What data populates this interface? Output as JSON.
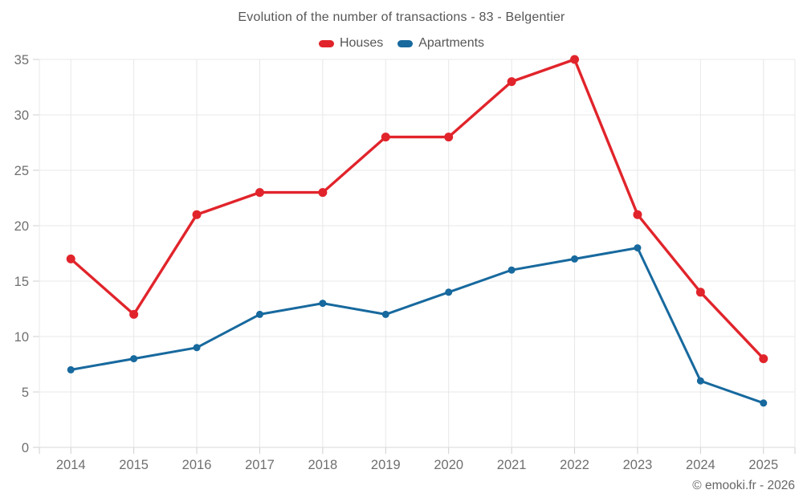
{
  "footer": {
    "copyright": "© emooki.fr - 2026"
  },
  "colors": {
    "houses": "#e1242b",
    "apartments": "#17699e",
    "grid": "#e8e8e8",
    "axis": "#cfcfcf",
    "tick_text": "#6f6f6f",
    "title_text": "#565656"
  },
  "chart_data": {
    "type": "line",
    "title": "Evolution of the number of transactions - 83 - Belgentier",
    "categories": [
      "2014",
      "2015",
      "2016",
      "2017",
      "2018",
      "2019",
      "2020",
      "2021",
      "2022",
      "2023",
      "2024",
      "2025"
    ],
    "series": [
      {
        "name": "Houses",
        "color": "#e1242b",
        "values": [
          17,
          12,
          21,
          23,
          23,
          28,
          28,
          33,
          35,
          21,
          14,
          8
        ]
      },
      {
        "name": "Apartments",
        "color": "#17699e",
        "values": [
          7,
          8,
          9,
          12,
          13,
          12,
          14,
          16,
          17,
          18,
          6,
          4
        ]
      }
    ],
    "xlabel": "",
    "ylabel": "",
    "ylim": [
      0,
      35
    ],
    "yticks": [
      0,
      5,
      10,
      15,
      20,
      25,
      30,
      35
    ],
    "grid": true,
    "legend_position": "top"
  }
}
